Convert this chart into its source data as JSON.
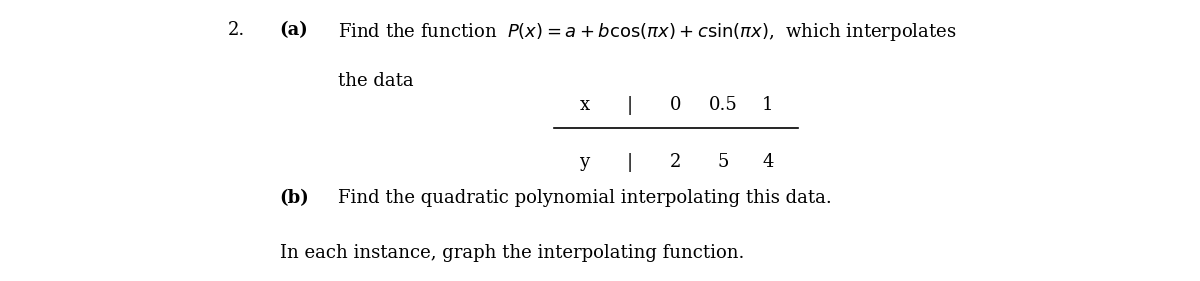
{
  "background_color": "#ffffff",
  "number_label": "2.",
  "part_a_label": "(a)",
  "part_a_text_1": "Find the function  $P(x) = a + b\\cos(\\pi x) + c\\sin(\\pi x)$,  which interpolates",
  "part_a_text_2": "the data",
  "table_x_label": "x",
  "table_y_label": "y",
  "table_x_values": [
    "0",
    "0.5",
    "1"
  ],
  "table_y_values": [
    "2",
    "5",
    "4"
  ],
  "part_b_label": "(b)",
  "part_b_text": "Find the quadratic polynomial interpolating this data.",
  "last_line": "In each instance, graph the interpolating function.",
  "font_size_main": 13,
  "font_size_table": 13,
  "text_color": "#000000"
}
